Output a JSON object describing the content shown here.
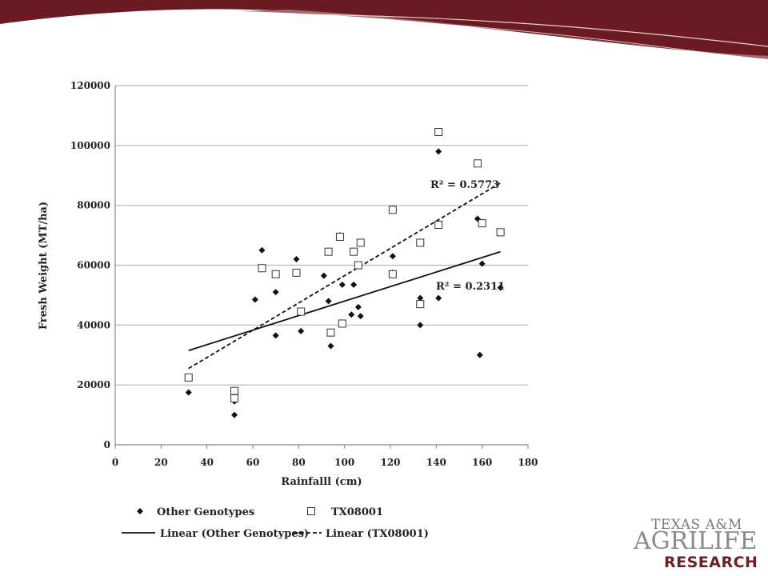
{
  "colors": {
    "banner": "#6b1a22",
    "banner_light": "#a36a6e",
    "grid": "#b5b5b5",
    "axis": "#888888",
    "marks": "#111111",
    "logo_maroon": "#6b1e26"
  },
  "chart_data": {
    "type": "scatter",
    "xlabel": "Rainfalll (cm)",
    "ylabel": "Fresh Weight (MT/ha)",
    "xlim": [
      0,
      180
    ],
    "ylim": [
      0,
      120000
    ],
    "x_ticks": [
      "0",
      "20",
      "40",
      "60",
      "80",
      "100",
      "120",
      "140",
      "160",
      "180"
    ],
    "y_ticks": [
      "0",
      "20000",
      "40000",
      "60000",
      "80000",
      "100000",
      "120000"
    ],
    "grid": "horizontal",
    "legend_position": "bottom",
    "series": [
      {
        "name": "Other Genotypes",
        "marker": "diamond",
        "points": [
          [
            32,
            17500
          ],
          [
            52,
            14500
          ],
          [
            52,
            10000
          ],
          [
            61,
            48500
          ],
          [
            64,
            65000
          ],
          [
            70,
            51000
          ],
          [
            70,
            36500
          ],
          [
            79,
            62000
          ],
          [
            81,
            38000
          ],
          [
            91,
            56500
          ],
          [
            93,
            48000
          ],
          [
            94,
            33000
          ],
          [
            98,
            70000
          ],
          [
            99,
            53500
          ],
          [
            103,
            43500
          ],
          [
            104,
            53500
          ],
          [
            106,
            46000
          ],
          [
            107,
            43000
          ],
          [
            121,
            63000
          ],
          [
            121,
            57500
          ],
          [
            133,
            49000
          ],
          [
            133,
            40000
          ],
          [
            141,
            98000
          ],
          [
            141,
            49000
          ],
          [
            158,
            75500
          ],
          [
            160,
            60500
          ],
          [
            159,
            30000
          ],
          [
            168,
            52500
          ]
        ]
      },
      {
        "name": "TX08001",
        "marker": "square-open",
        "points": [
          [
            32,
            22500
          ],
          [
            52,
            18000
          ],
          [
            52,
            15500
          ],
          [
            64,
            59000
          ],
          [
            70,
            57000
          ],
          [
            79,
            57500
          ],
          [
            81,
            44500
          ],
          [
            93,
            64500
          ],
          [
            94,
            37500
          ],
          [
            98,
            69500
          ],
          [
            99,
            40500
          ],
          [
            104,
            64500
          ],
          [
            106,
            60000
          ],
          [
            107,
            67500
          ],
          [
            121,
            78500
          ],
          [
            121,
            57000
          ],
          [
            133,
            67500
          ],
          [
            133,
            47000
          ],
          [
            141,
            104500
          ],
          [
            141,
            73500
          ],
          [
            158,
            94000
          ],
          [
            160,
            74000
          ],
          [
            168,
            71000
          ]
        ]
      }
    ],
    "trendlines": [
      {
        "name": "Linear (Other Genotypes)",
        "series": "Other Genotypes",
        "style": "solid",
        "x": [
          32,
          168
        ],
        "y": [
          31500,
          64500
        ],
        "r2_label": "R² = 0.2311"
      },
      {
        "name": "Linear (TX08001)",
        "series": "TX08001",
        "style": "dashed",
        "x": [
          32,
          168
        ],
        "y": [
          25500,
          87500
        ],
        "r2_label": "R² = 0.5773"
      }
    ]
  },
  "logo": {
    "line1": "TEXAS A&M",
    "line2": "AGRILIFE",
    "line3": "RESEARCH",
    "icon": "texas-am-agrilife-logo"
  }
}
